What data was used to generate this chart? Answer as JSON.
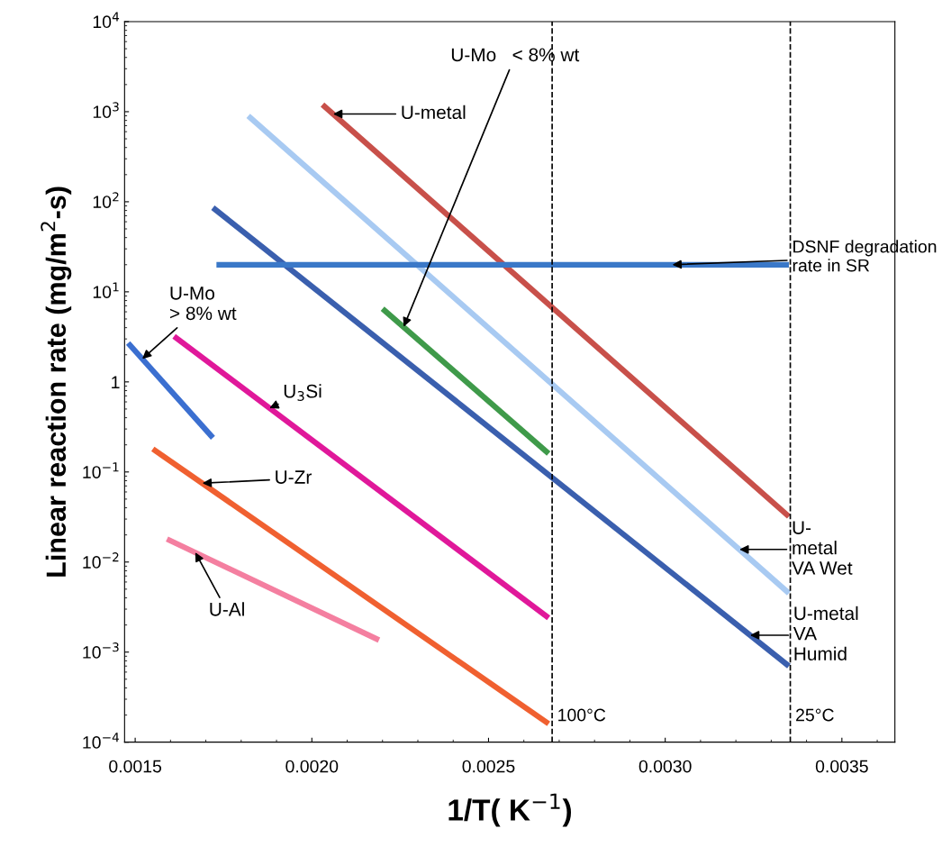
{
  "chart_data": {
    "type": "line",
    "xlabel": "1/T( K$^{−1}$)",
    "ylabel": "Linear reaction rate (mg/m$^{2}$-s)",
    "xlim": [
      0.00147,
      0.00365
    ],
    "xticks": [
      {
        "value": 0.0015,
        "label": "0.0015"
      },
      {
        "value": 0.002,
        "label": "0.0020"
      },
      {
        "value": 0.0025,
        "label": "0.0025"
      },
      {
        "value": 0.003,
        "label": "0.0030"
      },
      {
        "value": 0.0035,
        "label": "0.0035"
      }
    ],
    "ylim": [
      0.0001,
      10000
    ],
    "log": true,
    "yticks": [
      {
        "value": 0.0001,
        "label": "10$^{−4}$"
      },
      {
        "value": 0.001,
        "label": "10$^{−3}$"
      },
      {
        "value": 0.01,
        "label": "10$^{−2}$"
      },
      {
        "value": 0.1,
        "label": "10$^{−1}$"
      },
      {
        "value": 1,
        "label": "1"
      },
      {
        "value": 10,
        "label": "10$^{1}$"
      },
      {
        "value": 100,
        "label": "10$^{2}$"
      },
      {
        "value": 1000,
        "label": "10$^{3}$"
      },
      {
        "value": 10000,
        "label": "10$^{4}$"
      }
    ],
    "grid": false,
    "legend": false,
    "marker": "none",
    "line_style": "solid",
    "series": [
      {
        "color": "#c8504a",
        "x": [
          0.00203,
          0.00335
        ],
        "values": [
          1200,
          0.032
        ]
      },
      {
        "color": "#a8caf2",
        "x": [
          0.00182,
          0.00335
        ],
        "values": [
          900,
          0.0045
        ]
      },
      {
        "color": "#3a5fae",
        "x": [
          0.00172,
          0.00335
        ],
        "values": [
          86,
          0.0007
        ]
      },
      {
        "color": "#3a78c8",
        "x": [
          0.00173,
          0.00335
        ],
        "values": [
          20,
          20
        ]
      },
      {
        "color": "#3f9a4a",
        "x": [
          0.0022,
          0.00267
        ],
        "values": [
          6.5,
          0.16
        ]
      },
      {
        "color": "#3b6fd0",
        "x": [
          0.00148,
          0.00172
        ],
        "values": [
          2.7,
          0.24
        ]
      },
      {
        "color": "#e0189a",
        "x": [
          0.00161,
          0.00267
        ],
        "values": [
          3.2,
          0.0024
        ]
      },
      {
        "color": "#f06030",
        "x": [
          0.00155,
          0.00267
        ],
        "values": [
          0.18,
          0.00016
        ]
      },
      {
        "color": "#f47fa0",
        "x": [
          0.00159,
          0.00219
        ],
        "values": [
          0.018,
          0.00136
        ]
      }
    ],
    "ref_lines": [
      {
        "axis": "x",
        "value": 0.00268,
        "label": "100°C",
        "color": "#000000",
        "line_style": "dashed"
      },
      {
        "axis": "x",
        "value": 0.003354,
        "label": "25°C",
        "color": "#000000",
        "line_style": "dashed"
      }
    ],
    "annotations": [
      {
        "text": "U-metal",
        "x": 0.00206,
        "y": 944
      },
      {
        "text": "U-Mo   < 8% wt",
        "x": 0.00226,
        "y": 4.1
      },
      {
        "text": "DSNF degradation\nrate in SR",
        "x": 0.00302,
        "y": 20
      },
      {
        "text": "U-Mo\n> 8% wt",
        "x": 0.00152,
        "y": 1.8
      },
      {
        "text": "U$_{3}$Si",
        "x": 0.00188,
        "y": 0.51
      },
      {
        "text": "U-Zr",
        "x": 0.00169,
        "y": 0.075
      },
      {
        "text": "U-Al",
        "x": 0.00167,
        "y": 0.0128
      },
      {
        "text": "U-\nmetal\nVA Wet",
        "x": 0.00321,
        "y": 0.0138
      },
      {
        "text": "U-metal\nVA\nHumid",
        "x": 0.00324,
        "y": 0.00154
      }
    ]
  }
}
